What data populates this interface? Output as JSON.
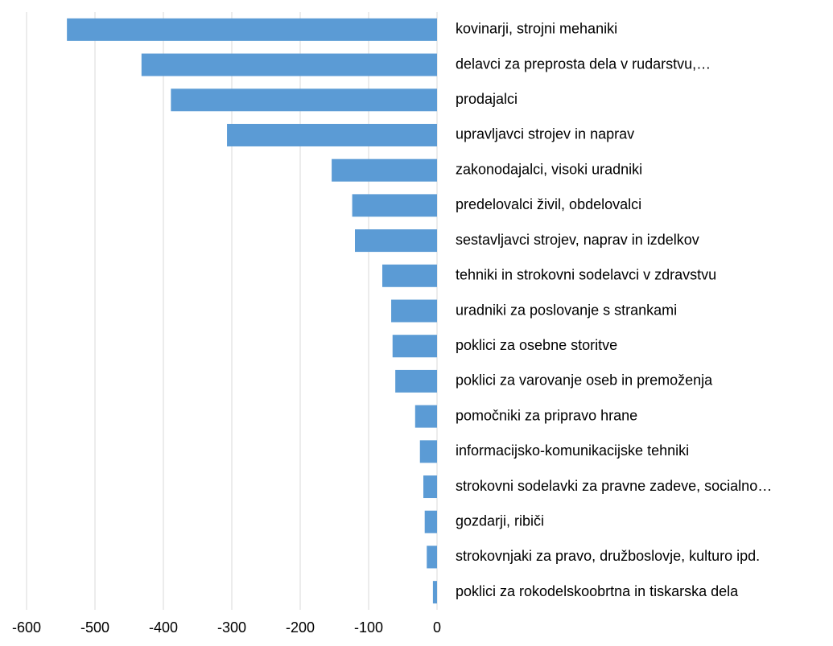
{
  "chart_data": {
    "type": "bar",
    "orientation": "horizontal",
    "color": "#5b9bd5",
    "grid": true,
    "categories": [
      "kovinarji, strojni mehaniki",
      "delavci za preprosta dela v rudarstvu,…",
      "prodajalci",
      "upravljavci strojev in naprav",
      "zakonodajalci, visoki uradniki",
      "predelovalci živil, obdelovalci",
      "sestavljavci strojev, naprav in izdelkov",
      "tehniki in strokovni sodelavci v zdravstvu",
      "uradniki za poslovanje s strankami",
      "poklici za osebne storitve",
      "poklici za varovanje oseb in premoženja",
      "pomočniki za pripravo hrane",
      "informacijsko-komunikacijske tehniki",
      "strokovni sodelavki za pravne zadeve, socialno…",
      "gozdarji, ribiči",
      "strokovnjaki za pravo, družboslovje, kulturo ipd.",
      "poklici za rokodelskoobrtna in tiskarska dela"
    ],
    "values": [
      -541,
      -432,
      -389,
      -307,
      -154,
      -124,
      -120,
      -80,
      -67,
      -65,
      -61,
      -32,
      -25,
      -20,
      -18,
      -15,
      -6
    ],
    "xlim": [
      -600,
      0
    ],
    "xticks": [
      -600,
      -500,
      -400,
      -300,
      -200,
      -100,
      0
    ]
  }
}
